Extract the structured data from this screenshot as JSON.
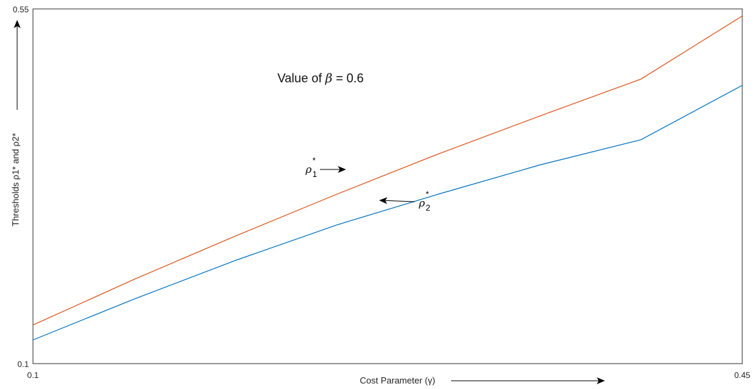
{
  "chart_data": {
    "type": "line",
    "xlabel": "Cost Parameter (γ)",
    "ylabel": "Thresholds ρ1* and ρ2*",
    "xlim": [
      0.1,
      0.45
    ],
    "ylim": [
      0.1,
      0.55
    ],
    "x_ticks": [
      "0.1",
      "0.45"
    ],
    "y_ticks": [
      "0.1",
      "0.55"
    ],
    "grid": false,
    "legend": "none",
    "annotation": {
      "text_prefix": "Value of ",
      "symbol": "β",
      "text_suffix": " = 0.6"
    },
    "series": [
      {
        "label_base": "ρ",
        "label_sub": "1",
        "label_sup": "*",
        "color": "#D95319",
        "x": [
          0.1,
          0.15,
          0.2,
          0.25,
          0.3,
          0.35,
          0.4,
          0.45
        ],
        "y": [
          0.149,
          0.207,
          0.262,
          0.315,
          0.366,
          0.414,
          0.461,
          0.541
        ]
      },
      {
        "label_base": "ρ",
        "label_sub": "2",
        "label_sup": "*",
        "color": "#0072BD",
        "x": [
          0.1,
          0.15,
          0.2,
          0.25,
          0.3,
          0.35,
          0.4,
          0.45
        ],
        "y": [
          0.13,
          0.182,
          0.231,
          0.276,
          0.315,
          0.352,
          0.384,
          0.453
        ]
      }
    ]
  }
}
